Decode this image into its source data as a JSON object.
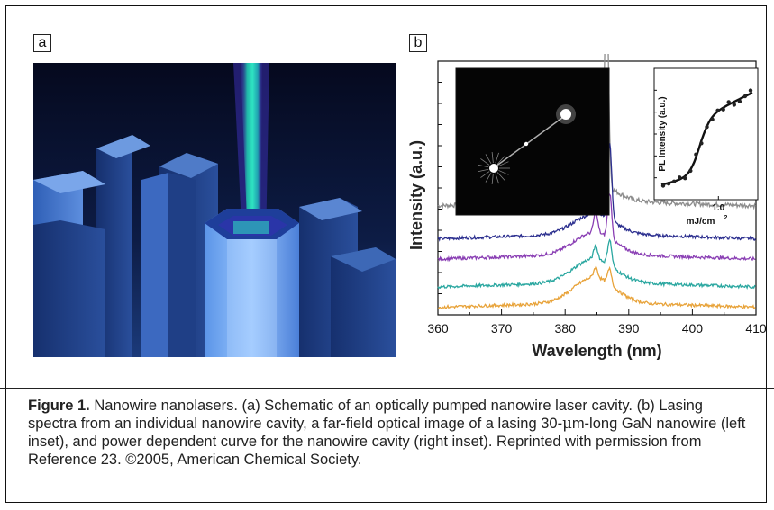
{
  "panels": {
    "a": {
      "label": "a"
    },
    "b": {
      "label": "b"
    }
  },
  "chart_data": {
    "type": "line",
    "xlabel": "Wavelength (nm)",
    "ylabel": "Intensity (a.u.)",
    "xlim": [
      360,
      410
    ],
    "xticks": [
      "360",
      "370",
      "380",
      "390",
      "400",
      "410"
    ],
    "y_tick_labels_shown": false,
    "series": [
      {
        "color": "#e8a33a",
        "baseline": 0.05,
        "peaks": [
          {
            "x": 384.8,
            "h": 0.04
          },
          {
            "x": 387.0,
            "h": 0.06
          }
        ]
      },
      {
        "color": "#2aa7a0",
        "baseline": 0.13,
        "peaks": [
          {
            "x": 384.8,
            "h": 0.05
          },
          {
            "x": 387.0,
            "h": 0.1
          }
        ]
      },
      {
        "color": "#8a3fb4",
        "baseline": 0.24,
        "peaks": [
          {
            "x": 384.8,
            "h": 0.08
          },
          {
            "x": 387.0,
            "h": 0.18
          }
        ]
      },
      {
        "color": "#2c2f8f",
        "baseline": 0.32,
        "peaks": [
          {
            "x": 384.7,
            "h": 0.12
          },
          {
            "x": 387.0,
            "h": 0.3
          }
        ]
      },
      {
        "color": "#8c8c8c",
        "baseline": 0.45,
        "peaks": [
          {
            "x": 386.5,
            "h": 0.78
          },
          {
            "x": 384.5,
            "h": 0.05
          }
        ]
      }
    ],
    "inset_right": {
      "type": "scatter",
      "ylabel": "PL Intensity (a.u.)",
      "xlabel": "mJ/cm",
      "xlabel_sup": "2",
      "xtick": "1.0",
      "curve_color": "#111111"
    },
    "inset_left": {
      "description_hidden": true
    }
  },
  "caption": {
    "prefix": "Figure 1.",
    "text_1": " Nanowire nanolasers. (a) Schematic of an optically pumped nanowire laser cavity. (b) Lasing spectra from an individual nanowire cavity, a far-field optical image of a lasing 30-",
    "mu": "μ",
    "text_2": "m-long GaN nanowire (left inset), and power dependent curve for the nanowire cavity (right inset). Reprinted with permission from Reference 23. ©2005, American Chemical Society."
  }
}
